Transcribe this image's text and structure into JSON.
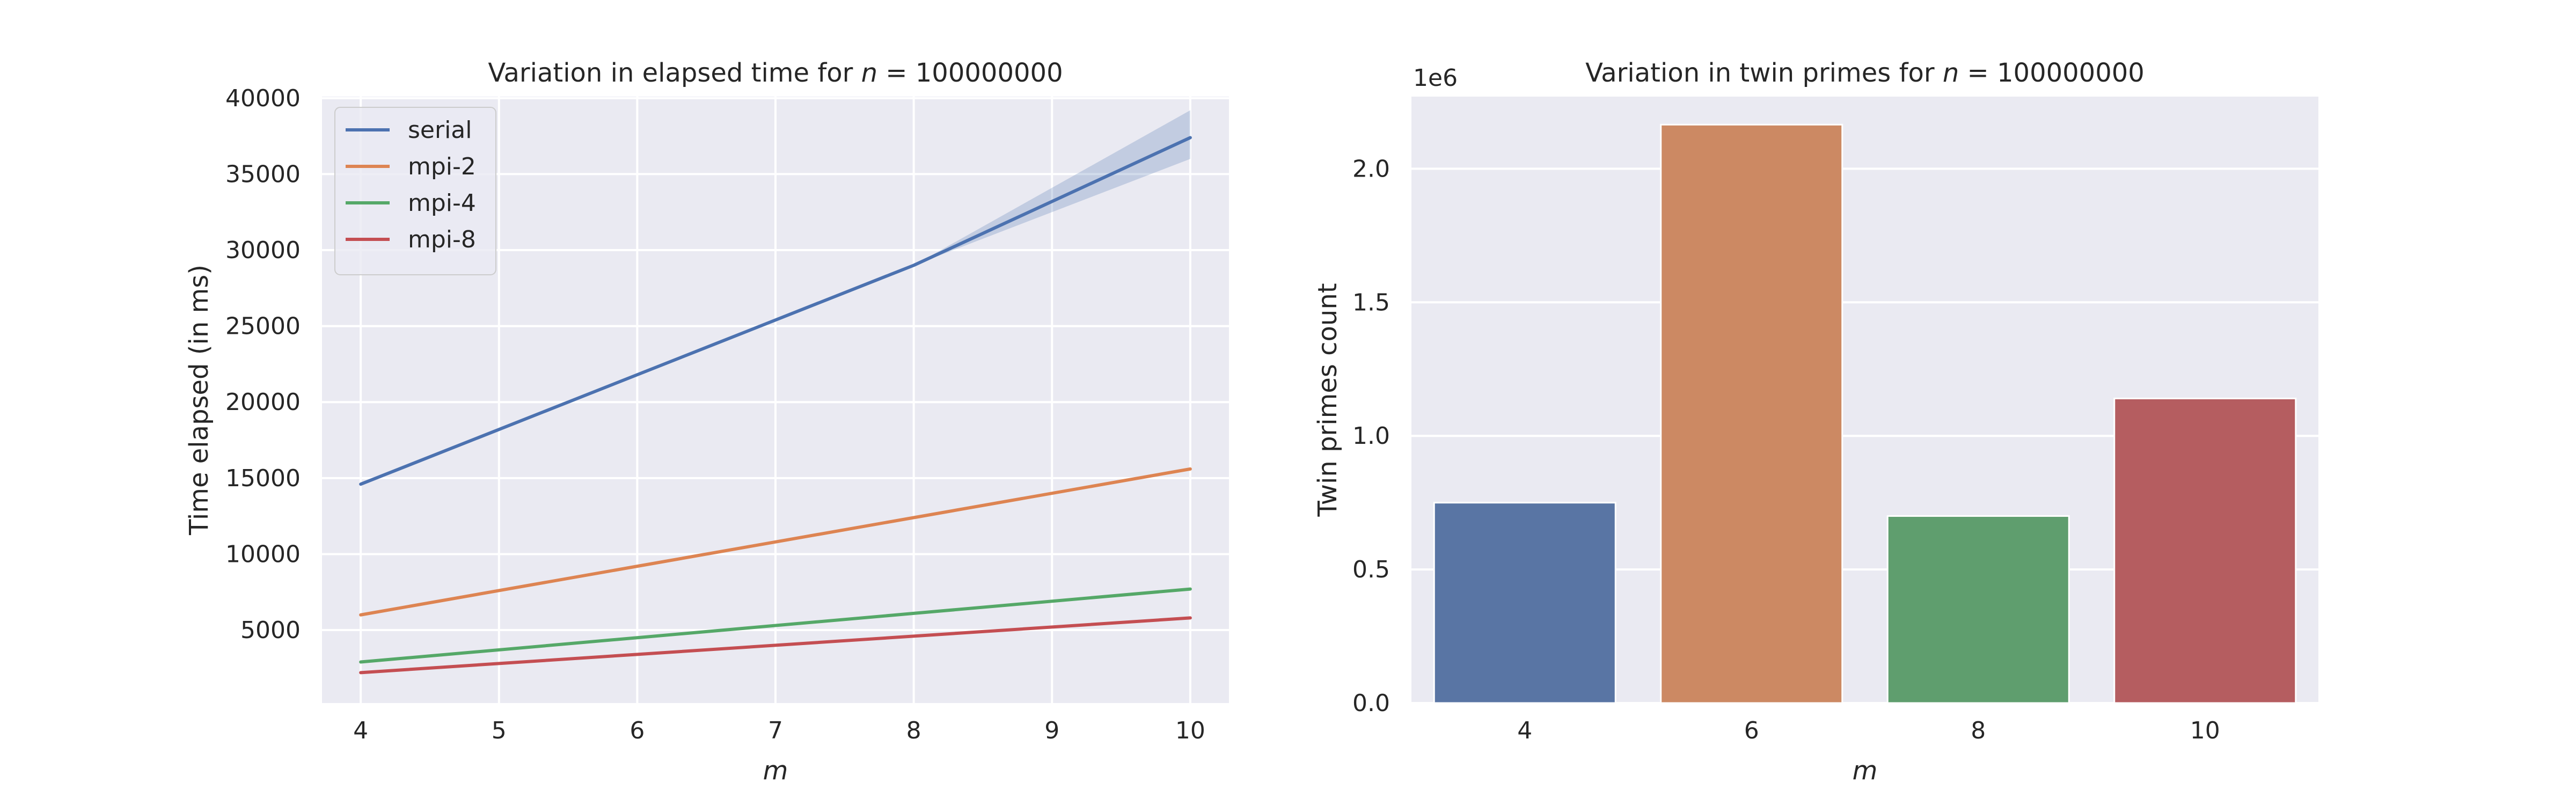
{
  "chart_data": [
    {
      "type": "line",
      "title_prefix": "Variation in elapsed time for ",
      "title_var": "n",
      "title_suffix": " = 100000000",
      "xlabel": "m",
      "ylabel": "Time elapsed (in ms)",
      "x": [
        4,
        6,
        8,
        10
      ],
      "xticks": [
        4,
        5,
        6,
        7,
        8,
        9,
        10
      ],
      "yticks": [
        5000,
        10000,
        15000,
        20000,
        25000,
        30000,
        35000,
        40000
      ],
      "xlim": [
        3.72,
        10.28
      ],
      "ylim": [
        200,
        40100
      ],
      "grid": true,
      "legend_position": "top-left",
      "series": [
        {
          "name": "serial",
          "color": "#4c72b0",
          "values": [
            14600,
            21800,
            29000,
            37400
          ],
          "ci_low": [
            14600,
            21800,
            29000,
            36000
          ],
          "ci_high": [
            14600,
            21800,
            29000,
            39200
          ]
        },
        {
          "name": "mpi-2",
          "color": "#dd8452",
          "values": [
            6000,
            9200,
            12400,
            15600
          ]
        },
        {
          "name": "mpi-4",
          "color": "#55a868",
          "values": [
            2900,
            4500,
            6100,
            7700
          ]
        },
        {
          "name": "mpi-8",
          "color": "#c44e52",
          "values": [
            2200,
            3400,
            4600,
            5800
          ]
        }
      ]
    },
    {
      "type": "bar",
      "title_prefix": "Variation in twin primes for ",
      "title_var": "n",
      "title_suffix": " = 100000000",
      "xlabel": "m",
      "ylabel": "Twin primes count",
      "offset_label": "1e6",
      "categories": [
        "4",
        "6",
        "8",
        "10"
      ],
      "values": [
        0.75,
        2.165,
        0.7,
        1.14
      ],
      "colors": [
        "#5975a4",
        "#cc8963",
        "#5f9e6e",
        "#b55d60"
      ],
      "yticks": [
        0.0,
        0.5,
        1.0,
        1.5,
        2.0
      ],
      "ytick_labels": [
        "0.0",
        "0.5",
        "1.0",
        "1.5",
        "2.0"
      ],
      "ylim": [
        0,
        2.27
      ],
      "grid": true
    }
  ]
}
